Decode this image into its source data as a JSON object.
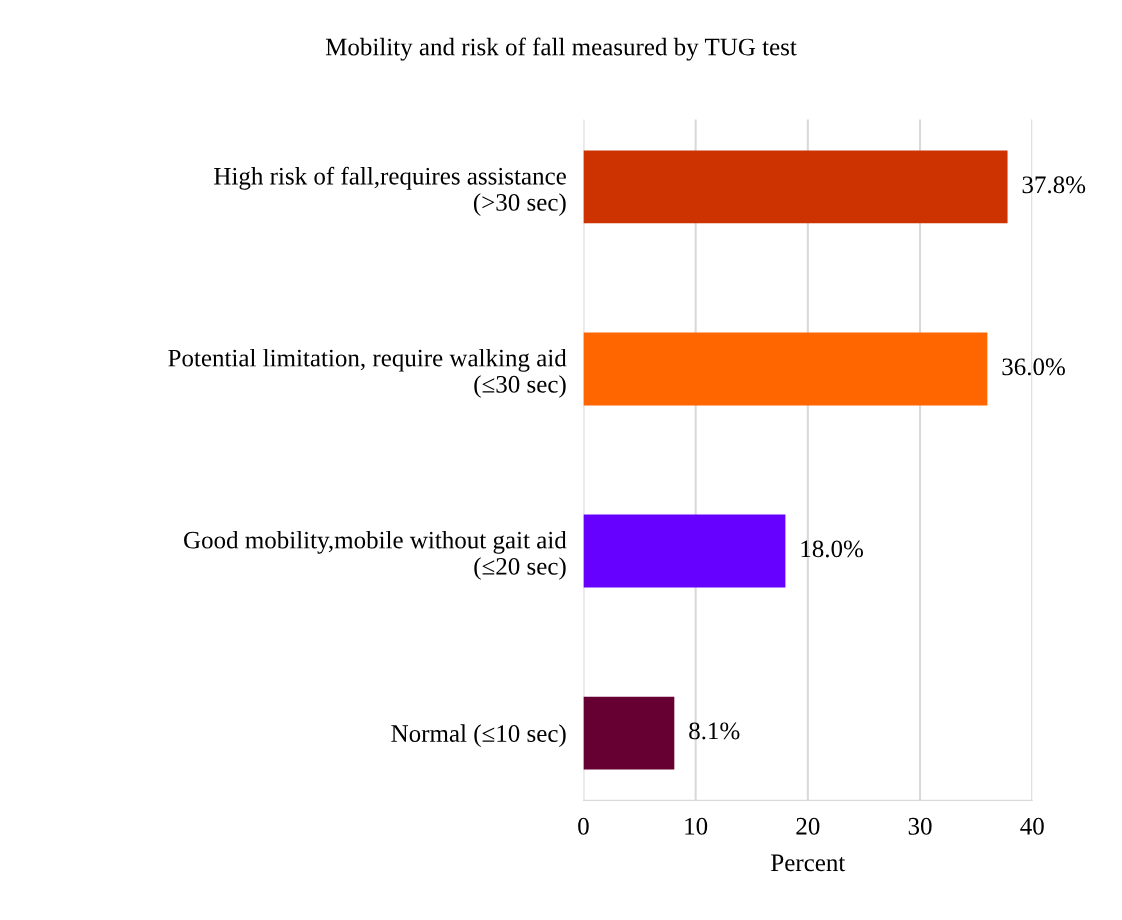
{
  "chart_data": {
    "type": "bar",
    "orientation": "horizontal",
    "title": "Mobility and risk of fall measured by TUG test",
    "xlabel": "Percent",
    "categories": [
      "High risk of fall,requires assistance\n(>30 sec)",
      "Potential limitation, require walking aid\n(≤30 sec)",
      "Good mobility,mobile without gait aid\n(≤20 sec)",
      "Normal (≤10 sec)"
    ],
    "values": [
      37.8,
      36.0,
      18.0,
      8.1
    ],
    "colors": [
      "#cc3300",
      "#ff6600",
      "#6600ff",
      "#660033"
    ],
    "value_labels": [
      "37.8%",
      "36.0%",
      "18.0%",
      "8.1%"
    ],
    "xlim": [
      0,
      40
    ],
    "xticks": [
      0,
      10,
      20,
      30,
      40
    ],
    "grid": "x"
  }
}
